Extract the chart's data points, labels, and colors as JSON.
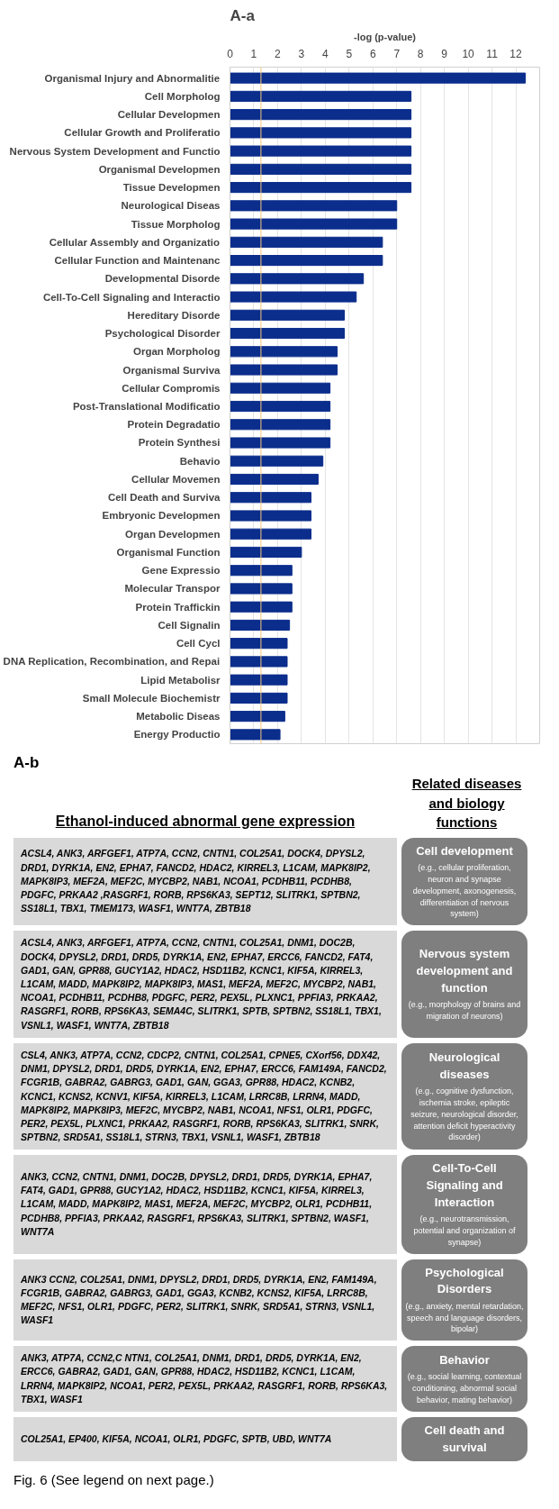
{
  "chart_data": [
    {
      "type": "bar",
      "orientation": "horizontal",
      "title": "A-a",
      "xlabel": "-log (p-value)",
      "categories": [
        "Organismal Injury and Abnormalitie",
        "Cell Morpholog",
        "Cellular Developmen",
        "Cellular Growth and Proliferatio",
        "Nervous System Development and Functio",
        "Organismal Developmen",
        "Tissue Developmen",
        "Neurological Diseas",
        "Tissue Morpholog",
        "Cellular Assembly and Organizatio",
        "Cellular Function and Maintenanc",
        "Developmental Disorde",
        "Cell-To-Cell Signaling and Interactio",
        "Hereditary Disorde",
        "Psychological Disorder",
        "Organ Morpholog",
        "Organismal Surviva",
        "Cellular Compromis",
        "Post-Translational Modificatio",
        "Protein Degradatio",
        "Protein Synthesi",
        "Behavio",
        "Cellular Movemen",
        "Cell Death and Surviva",
        "Embryonic Developmen",
        "Organ Developmen",
        "Organismal Function",
        "Gene Expressio",
        "Molecular Transpor",
        "Protein Traffickin",
        "Cell Signalin",
        "Cell Cycl",
        "DNA Replication, Recombination, and Repai",
        "Lipid Metabolisr",
        "Small Molecule Biochemistr",
        "Metabolic Diseas",
        "Energy Productio"
      ],
      "values": [
        12.4,
        7.6,
        7.6,
        7.6,
        7.6,
        7.6,
        7.6,
        7.0,
        7.0,
        6.4,
        6.4,
        5.6,
        5.3,
        4.8,
        4.8,
        4.5,
        4.5,
        4.2,
        4.2,
        4.2,
        4.2,
        3.9,
        3.7,
        3.4,
        3.4,
        3.4,
        3.0,
        2.6,
        2.6,
        2.6,
        2.5,
        2.4,
        2.4,
        2.4,
        2.4,
        2.3,
        2.1
      ],
      "color": "#0b2d8c",
      "xlim": [
        0,
        13
      ],
      "xticks": [
        0,
        1,
        2,
        3,
        4,
        5,
        6,
        7,
        8,
        9,
        10,
        11,
        12
      ],
      "grid": "x",
      "ref_lines": [
        {
          "axis": "x",
          "value": 1.3,
          "label": null,
          "color": "#f5c77e"
        }
      ]
    },
    {
      "type": "other",
      "title": "A-b",
      "annotations": [
        "Ethanol-induced abnormal gene expression",
        "Related diseases and biology functions",
        "Fig. 6 (See legend on next page.)",
        "ACSL4, ANK3, ARFGEF1, ATP7A, CCN2, CNTN1, COL25A1, DOCK4, DPYSL2, DRD1, DYRK1A, EN2, EPHA7, FANCD2, HDAC2, KIRREL3, L1CAM, MAPK8IP2, MAPK8IP3, MEF2A, MEF2C, MYCBP2, NAB1, NCOA1, PCDHB11, PCDHB8, PDGFC, PRKAA2 ,RASGRF1, RORB, RPS6KA3, SEPT12, SLITRK1, SPTBN2, SS18L1, TBX1, TMEM173, WASF1, WNT7A, ZBTB18",
        "Cell development\n(e.g., cellular proliferation, neuron and synapse development, axonogenesis, differentiation of nervous system)",
        "ACSL4, ANK3, ARFGEF1, ATP7A, CCN2, CNTN1, COL25A1, DNM1, DOC2B, DOCK4, DPYSL2, DRD1, DRD5, DYRK1A, EN2, EPHA7, ERCC6, FANCD2, FAT4, GAD1, GAN, GPR88, GUCY1A2, HDAC2, HSD11B2, KCNC1, KIF5A, KIRREL3, L1CAM, MADD, MAPK8IP2, MAPK8IP3, MAS1, MEF2A, MEF2C, MYCBP2, NAB1, NCOA1, PCDHB11, PCDHB8, PDGFC, PER2, PEX5L, PLXNC1, PPFIA3, PRKAA2, RASGRF1, RORB, RPS6KA3, SEMA4C, SLITRK1, SPTB, SPTBN2, SS18L1, TBX1, VSNL1, WASF1, WNT7A, ZBTB18",
        "Nervous system development and function\n(e.g., morphology of brains and migration of neurons)",
        "CSL4, ANK3, ATP7A, CCN2, CDCP2, CNTN1, COL25A1, CPNE5, CXorf56, DDX42, DNM1, DPYSL2, DRD1, DRD5, DYRK1A, EN2, EPHA7, ERCC6, FAM149A, FANCD2, FCGR1B, GABRA2, GABRG3, GAD1, GAN, GGA3, GPR88, HDAC2, KCNB2, KCNC1, KCNS2, KCNV1, KIF5A, KIRREL3, L1CAM, LRRC8B, LRRN4, MADD, MAPK8IP2, MAPK8IP3, MEF2C, MYCBP2, NAB1, NCOA1, NFS1, OLR1, PDGFC, PER2, PEX5L, PLXNC1, PRKAA2, RASGRF1, RORB, RPS6KA3, SLITRK1, SNRK, SPTBN2, SRD5A1, SS18L1, STRN3, TBX1, VSNL1, WASF1, ZBTB18",
        "Neurological diseases\n(e.g., cognitive dysfunction, ischemia stroke, epileptic seizure, neurological disorder, attention deficit hyperactivity disorder)",
        "ANK3, CCN2, CNTN1, DNM1, DOC2B, DPYSL2, DRD1, DRD5, DYRK1A, EPHA7, FAT4, GAD1, GPR88, GUCY1A2, HDAC2, HSD11B2, KCNC1, KIF5A, KIRREL3, L1CAM, MADD, MAPK8IP2, MAS1, MEF2A, MEF2C, MYCBP2, OLR1, PCDHB11, PCDHB8, PPFIA3, PRKAA2, RASGRF1, RPS6KA3, SLITRK1, SPTBN2, WASF1, WNT7A",
        "Cell-To-Cell Signaling and Interaction\n(e.g., neurotransmission, potential and organization of synapse)",
        "ANK3 CCN2, COL25A1, DNM1, DPYSL2, DRD1, DRD5, DYRK1A, EN2, FAM149A, FCGR1B, GABRA2, GABRG3, GAD1, GGA3, KCNB2, KCNS2, KIF5A, LRRC8B, MEF2C, NFS1, OLR1, PDGFC, PER2, SLITRK1, SNRK, SRD5A1, STRN3, VSNL1, WASF1",
        "Psychological Disorders\n(e.g., anxiety, mental retardation, speech and language disorders, bipolar)",
        "ANK3, ATP7A, CCN2,C NTN1, COL25A1, DNM1, DRD1, DRD5, DYRK1A, EN2, ERCC6, GABRA2, GAD1, GAN, GPR88, HDAC2, HSD11B2, KCNC1, L1CAM, LRRN4, MAPK8IP2, NCOA1, PER2, PEX5L, PRKAA2, RASGRF1, RORB, RPS6KA3, TBX1, WASF1",
        "Behavior\n(e.g., social learning, contextual conditioning, abnormal social behavior, mating behavior)",
        "COL25A1, EP400, KIF5A, NCOA1, OLR1, PDGFC, SPTB, UBD, WNT7A",
        "Cell death and survival"
      ]
    }
  ]
}
